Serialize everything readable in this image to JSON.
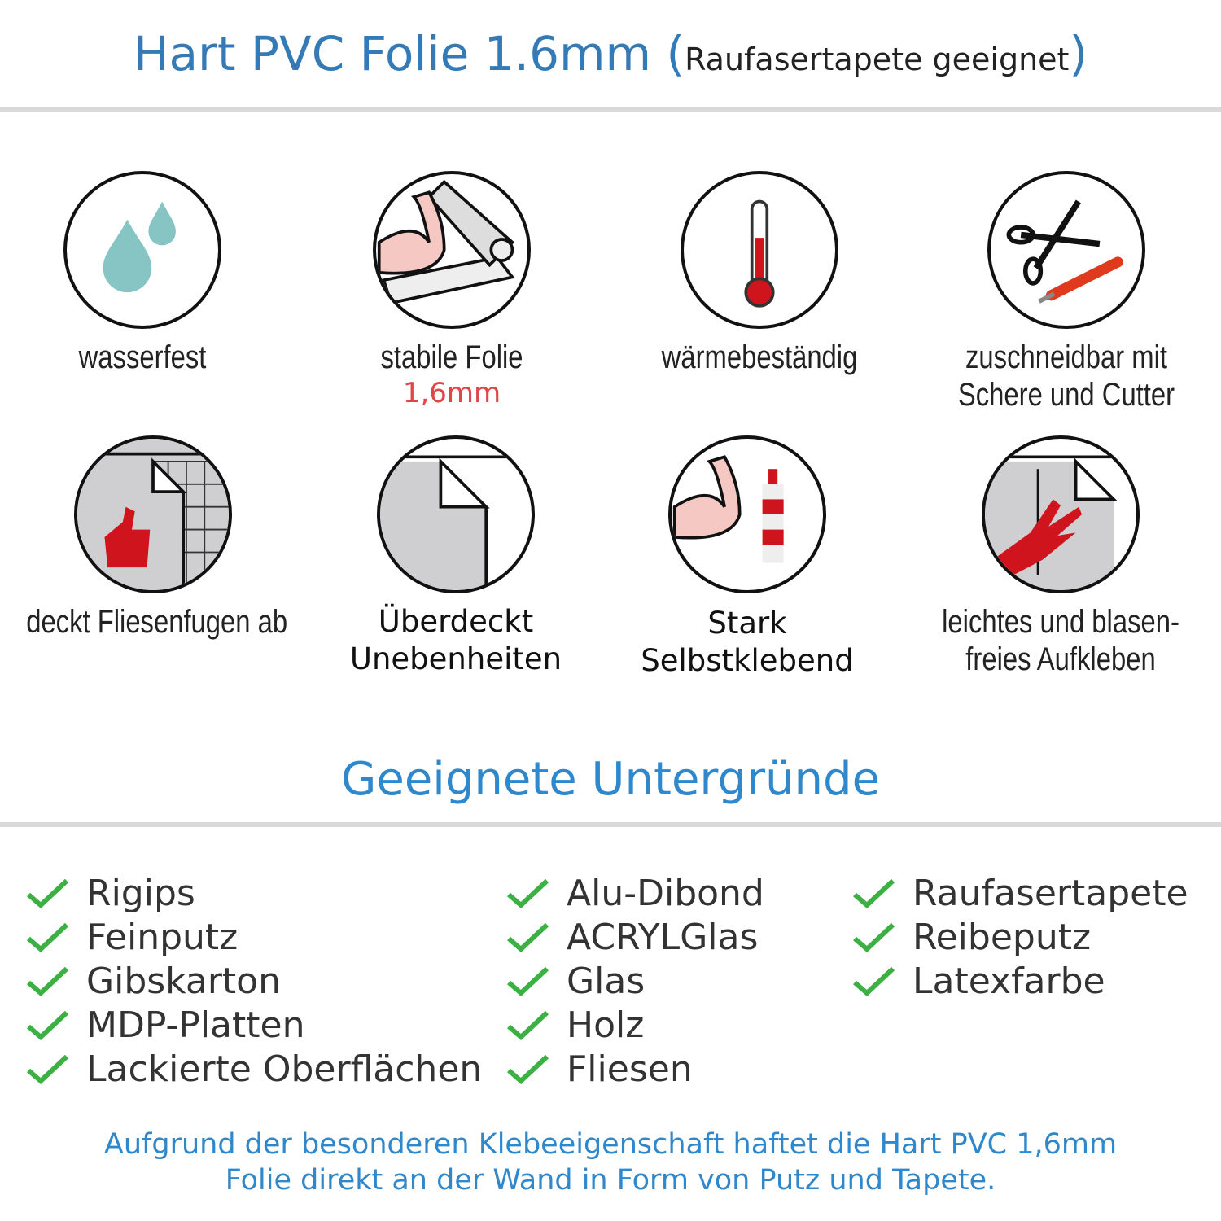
{
  "header": {
    "title": "Hart PVC Folie 1.6mm",
    "paren_open": "(",
    "subtitle": "Raufasertapete geeignet",
    "paren_close": ")"
  },
  "features": [
    {
      "icon": "water-drops-icon",
      "label": "wasserfest"
    },
    {
      "icon": "strong-film-icon",
      "label": "stabile Folie",
      "sublabel": "1,6mm"
    },
    {
      "icon": "thermometer-icon",
      "label": "wärmebeständig"
    },
    {
      "icon": "scissors-cutter-icon",
      "label": "zuschneidbar mit",
      "label2": "Schere und Cutter"
    },
    {
      "icon": "thumbs-up-tiles-icon",
      "label": "deckt Fliesenfugen ab"
    },
    {
      "icon": "film-corner-icon",
      "label": "Überdeckt",
      "label2": "Unebenheiten"
    },
    {
      "icon": "strong-glue-icon",
      "label": "Stark",
      "label2": "Selbstklebend"
    },
    {
      "icon": "hand-apply-icon",
      "label": "leichtes und blasen-",
      "label2": "freies Aufkleben"
    }
  ],
  "surfaces": {
    "title": "Geeignete Untergründe",
    "columns": [
      [
        "Rigips",
        "Feinputz",
        "Gibskarton",
        "MDP-Platten",
        "Lackierte Oberflächen"
      ],
      [
        "Alu-Dibond",
        "ACRYLGlas",
        "Glas",
        "Holz",
        "Fliesen"
      ],
      [
        "Raufasertapete",
        "Reibeputz",
        "Latexfarbe"
      ]
    ]
  },
  "footer": {
    "line1": "Aufgrund der besonderen Klebeeigenschaft haftet die Hart PVC 1,6mm",
    "line2": "Folie direkt an der Wand in Form von Putz und Tapete."
  },
  "colors": {
    "accent": "#337ab7",
    "heading": "#2f88cc",
    "check": "#3cb043",
    "highlight": "#e04646",
    "icon_red": "#d0141e"
  }
}
